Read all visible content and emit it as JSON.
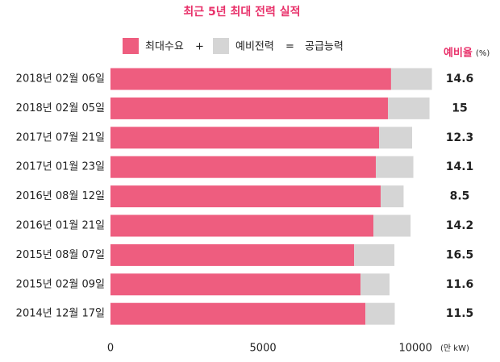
{
  "chart_data": {
    "type": "stacked_bar_horizontal",
    "title": "최근 5년 최대 전력 실적",
    "categories": [
      "2018년 02월 06일",
      "2018년 02월 05일",
      "2017년 07월 21일",
      "2017년 01월 23일",
      "2016년 08월 12일",
      "2016년 01월 21일",
      "2015년 08월 07일",
      "2015년 02월 09일",
      "2014년 12월 17일"
    ],
    "series": [
      {
        "name": "최대수요",
        "color": "#ee5d7f",
        "values": [
          9200,
          9100,
          8810,
          8700,
          8860,
          8620,
          7990,
          8200,
          8360
        ]
      },
      {
        "name": "예비전력",
        "color": "#d5d5d5",
        "values": [
          1340,
          1360,
          1080,
          1230,
          750,
          1220,
          1320,
          950,
          960
        ]
      }
    ],
    "legend_operators": [
      "+",
      "="
    ],
    "legend_total": "공급능력",
    "reserve_ratio": {
      "title": "예비율",
      "unit": "(%)",
      "values": [
        14.6,
        15,
        12.3,
        14.1,
        8.5,
        14.2,
        16.5,
        11.6,
        11.5
      ]
    },
    "xlim": [
      0,
      11000
    ],
    "xticks": [
      0,
      5000,
      10000
    ],
    "x_unit": "(만 kW)",
    "grid": false
  }
}
